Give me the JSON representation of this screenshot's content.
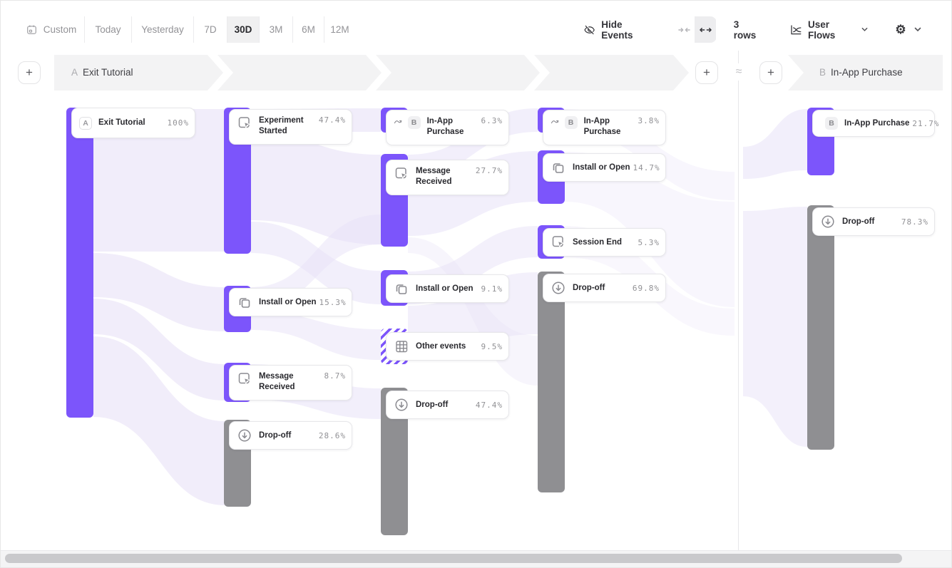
{
  "toolbar": {
    "date_presets": [
      {
        "label": "Custom",
        "selected": false
      },
      {
        "label": "Today",
        "selected": false
      },
      {
        "label": "Yesterday",
        "selected": false
      },
      {
        "label": "7D",
        "selected": false
      },
      {
        "label": "30D",
        "selected": true
      },
      {
        "label": "3M",
        "selected": false
      },
      {
        "label": "6M",
        "selected": false
      },
      {
        "label": "12M",
        "selected": false
      }
    ],
    "hide_events_label": "Hide Events",
    "rows_label": "3 rows",
    "view_selector_label": "User Flows",
    "gear_glyph": "⚙"
  },
  "headers": {
    "flow_a": {
      "badge": "A",
      "title": "Exit Tutorial"
    },
    "flow_b": {
      "badge": "B",
      "title": "In-App Purchase"
    }
  },
  "symbols": {
    "approx": "≈",
    "plus": "+"
  },
  "colors": {
    "accent": "#7c55fb",
    "dropoff": "#8f8f92",
    "ribbon": "#efeafa"
  },
  "nodes": {
    "exit_tutorial": {
      "badge": "A",
      "label": "Exit Tutorial",
      "value": "100%"
    },
    "experiment_started": {
      "label": "Experiment Started",
      "value": "47.4%"
    },
    "install_or_open_2": {
      "label": "Install or Open",
      "value": "15.3%"
    },
    "message_received_2": {
      "label": "Message Received",
      "value": "8.7%"
    },
    "dropoff_2": {
      "label": "Drop-off",
      "value": "28.6%"
    },
    "in_app_3": {
      "badge": "B",
      "label": "In-App Purchase",
      "value": "6.3%"
    },
    "message_received_3": {
      "label": "Message Received",
      "value": "27.7%"
    },
    "install_or_open_3": {
      "label": "Install or Open",
      "value": "9.1%"
    },
    "other_events": {
      "label": "Other events",
      "value": "9.5%"
    },
    "dropoff_3": {
      "label": "Drop-off",
      "value": "47.4%"
    },
    "in_app_4": {
      "badge": "B",
      "label": "In-App Purchase",
      "value": "3.8%"
    },
    "install_or_open_4": {
      "label": "Install or Open",
      "value": "14.7%"
    },
    "session_end": {
      "label": "Session End",
      "value": "5.3%"
    },
    "dropoff_4": {
      "label": "Drop-off",
      "value": "69.8%"
    },
    "in_app_b": {
      "badge": "B",
      "label": "In-App Purchase",
      "value": "21.7%"
    },
    "dropoff_b": {
      "label": "Drop-off",
      "value": "78.3%"
    }
  },
  "chart_data": {
    "type": "sankey-user-flows",
    "flow_a": {
      "start_event": "Exit Tutorial",
      "columns": [
        [
          {
            "label": "Exit Tutorial",
            "pct": 100
          }
        ],
        [
          {
            "label": "Experiment Started",
            "pct": 47.4
          },
          {
            "label": "Install or Open",
            "pct": 15.3
          },
          {
            "label": "Message Received",
            "pct": 8.7
          },
          {
            "label": "Drop-off",
            "pct": 28.6
          }
        ],
        [
          {
            "label": "In-App Purchase",
            "pct": 6.3
          },
          {
            "label": "Message Received",
            "pct": 27.7
          },
          {
            "label": "Install or Open",
            "pct": 9.1
          },
          {
            "label": "Other events",
            "pct": 9.5
          },
          {
            "label": "Drop-off",
            "pct": 47.4
          }
        ],
        [
          {
            "label": "In-App Purchase",
            "pct": 3.8
          },
          {
            "label": "Install or Open",
            "pct": 14.7
          },
          {
            "label": "Session End",
            "pct": 5.3
          },
          {
            "label": "Drop-off",
            "pct": 69.8
          }
        ]
      ]
    },
    "flow_b": {
      "end_event": "In-App Purchase",
      "columns": [
        [
          {
            "label": "In-App Purchase",
            "pct": 21.7
          },
          {
            "label": "Drop-off",
            "pct": 78.3
          }
        ]
      ]
    }
  }
}
